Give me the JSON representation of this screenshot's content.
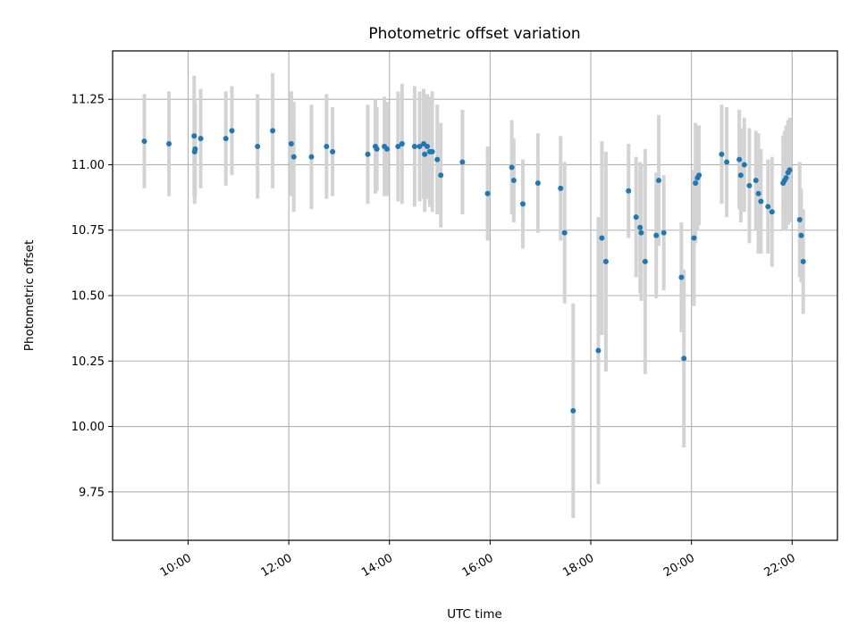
{
  "chart_data": {
    "type": "scatter",
    "title": "Photometric offset variation",
    "xlabel": "UTC time",
    "ylabel": "Photometric offset",
    "x_unit": "hours UTC",
    "xlim": [
      8.5,
      22.9
    ],
    "ylim": [
      9.565,
      11.435
    ],
    "x_ticks": [
      {
        "value": 10,
        "label": "10:00"
      },
      {
        "value": 12,
        "label": "12:00"
      },
      {
        "value": 14,
        "label": "14:00"
      },
      {
        "value": 16,
        "label": "16:00"
      },
      {
        "value": 18,
        "label": "18:00"
      },
      {
        "value": 20,
        "label": "20:00"
      },
      {
        "value": 22,
        "label": "22:00"
      }
    ],
    "y_ticks": [
      {
        "value": 9.75,
        "label": "9.75"
      },
      {
        "value": 10.0,
        "label": "10.00"
      },
      {
        "value": 10.25,
        "label": "10.25"
      },
      {
        "value": 10.5,
        "label": "10.50"
      },
      {
        "value": 10.75,
        "label": "10.75"
      },
      {
        "value": 11.0,
        "label": "11.00"
      },
      {
        "value": 11.25,
        "label": "11.25"
      }
    ],
    "grid": true,
    "colors": {
      "marker": "#1f77b4",
      "errorbar": "#d3d3d3",
      "grid": "#b0b0b0"
    },
    "points": [
      [
        9.13,
        11.09,
        0.18
      ],
      [
        9.62,
        11.08,
        0.2
      ],
      [
        10.12,
        11.11,
        0.23
      ],
      [
        10.14,
        11.06,
        0.18
      ],
      [
        10.13,
        11.05,
        0.2
      ],
      [
        10.25,
        11.1,
        0.19
      ],
      [
        10.75,
        11.1,
        0.18
      ],
      [
        10.87,
        11.13,
        0.17
      ],
      [
        11.38,
        11.07,
        0.2
      ],
      [
        11.68,
        11.13,
        0.22
      ],
      [
        12.05,
        11.08,
        0.2
      ],
      [
        12.1,
        11.03,
        0.21
      ],
      [
        12.45,
        11.03,
        0.2
      ],
      [
        12.75,
        11.07,
        0.2
      ],
      [
        12.87,
        11.05,
        0.17
      ],
      [
        13.57,
        11.04,
        0.19
      ],
      [
        13.72,
        11.07,
        0.18
      ],
      [
        13.75,
        11.06,
        0.16
      ],
      [
        13.9,
        11.07,
        0.19
      ],
      [
        13.95,
        11.06,
        0.18
      ],
      [
        14.17,
        11.07,
        0.21
      ],
      [
        14.25,
        11.08,
        0.23
      ],
      [
        14.5,
        11.07,
        0.23
      ],
      [
        14.6,
        11.07,
        0.21
      ],
      [
        14.68,
        11.08,
        0.21
      ],
      [
        14.7,
        11.04,
        0.22
      ],
      [
        14.75,
        11.07,
        0.2
      ],
      [
        14.8,
        11.05,
        0.21
      ],
      [
        14.85,
        11.05,
        0.23
      ],
      [
        14.95,
        11.02,
        0.21
      ],
      [
        15.02,
        10.96,
        0.2
      ],
      [
        15.45,
        11.01,
        0.2
      ],
      [
        15.95,
        10.89,
        0.18
      ],
      [
        16.43,
        10.99,
        0.18
      ],
      [
        16.47,
        10.94,
        0.16
      ],
      [
        16.65,
        10.85,
        0.17
      ],
      [
        16.95,
        10.93,
        0.19
      ],
      [
        17.4,
        10.91,
        0.2
      ],
      [
        17.48,
        10.74,
        0.27
      ],
      [
        17.65,
        10.06,
        0.41
      ],
      [
        18.15,
        10.29,
        0.51
      ],
      [
        18.22,
        10.72,
        0.37
      ],
      [
        18.3,
        10.63,
        0.42
      ],
      [
        18.75,
        10.9,
        0.18
      ],
      [
        18.9,
        10.8,
        0.23
      ],
      [
        18.98,
        10.76,
        0.25
      ],
      [
        19.0,
        10.74,
        0.26
      ],
      [
        19.08,
        10.63,
        0.43
      ],
      [
        19.3,
        10.73,
        0.24
      ],
      [
        19.35,
        10.94,
        0.25
      ],
      [
        19.45,
        10.74,
        0.22
      ],
      [
        19.8,
        10.57,
        0.21
      ],
      [
        19.85,
        10.26,
        0.34
      ],
      [
        20.05,
        10.72,
        0.26
      ],
      [
        20.08,
        10.93,
        0.23
      ],
      [
        20.12,
        10.95,
        0.2
      ],
      [
        20.15,
        10.96,
        0.19
      ],
      [
        20.6,
        11.04,
        0.19
      ],
      [
        20.7,
        11.01,
        0.21
      ],
      [
        20.95,
        11.02,
        0.19
      ],
      [
        20.98,
        10.96,
        0.18
      ],
      [
        21.05,
        11.0,
        0.18
      ],
      [
        21.15,
        10.92,
        0.22
      ],
      [
        21.28,
        10.94,
        0.19
      ],
      [
        21.33,
        10.89,
        0.23
      ],
      [
        21.38,
        10.86,
        0.2
      ],
      [
        21.52,
        10.84,
        0.18
      ],
      [
        21.6,
        10.82,
        0.21
      ],
      [
        21.82,
        10.93,
        0.18
      ],
      [
        21.85,
        10.94,
        0.19
      ],
      [
        21.88,
        10.95,
        0.2
      ],
      [
        21.92,
        10.97,
        0.2
      ],
      [
        21.95,
        10.98,
        0.2
      ],
      [
        22.15,
        10.79,
        0.22
      ],
      [
        22.18,
        10.73,
        0.18
      ],
      [
        22.22,
        10.63,
        0.2
      ]
    ]
  }
}
